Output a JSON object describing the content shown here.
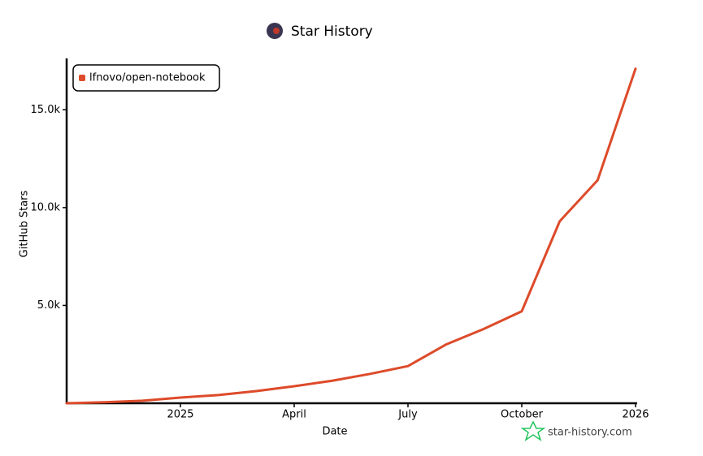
{
  "chart_data": {
    "type": "line",
    "title": "Star History",
    "x_label": "Date",
    "y_label": "GitHub Stars",
    "x": [
      "2024-10",
      "2024-11",
      "2024-12",
      "2025-01",
      "2025-02",
      "2025-03",
      "2025-04",
      "2025-05",
      "2025-06",
      "2025-07",
      "2025-08",
      "2025-09",
      "2025-10",
      "2025-11",
      "2025-12",
      "2026-01"
    ],
    "series": [
      {
        "name": "lfnovo/open-notebook",
        "color": "#dd4b2a",
        "values": [
          0,
          50,
          130,
          290,
          420,
          620,
          870,
          1150,
          1500,
          1900,
          3000,
          3800,
          4700,
          9300,
          11400,
          17100
        ]
      }
    ],
    "xlim": [
      "2024-10",
      "2026-01"
    ],
    "xticks": [
      {
        "value": "2025-01",
        "label": "2025"
      },
      {
        "value": "2025-04",
        "label": "April"
      },
      {
        "value": "2025-07",
        "label": "July"
      },
      {
        "value": "2025-10",
        "label": "October"
      },
      {
        "value": "2026-01",
        "label": "2026"
      }
    ],
    "ylim": [
      0,
      17500
    ],
    "yticks": [
      {
        "value": 5000,
        "label": "5.0k"
      },
      {
        "value": 10000,
        "label": "10.0k"
      },
      {
        "value": 15000,
        "label": "15.0k"
      }
    ],
    "legend": "top-left",
    "watermark": "star-history.com"
  }
}
